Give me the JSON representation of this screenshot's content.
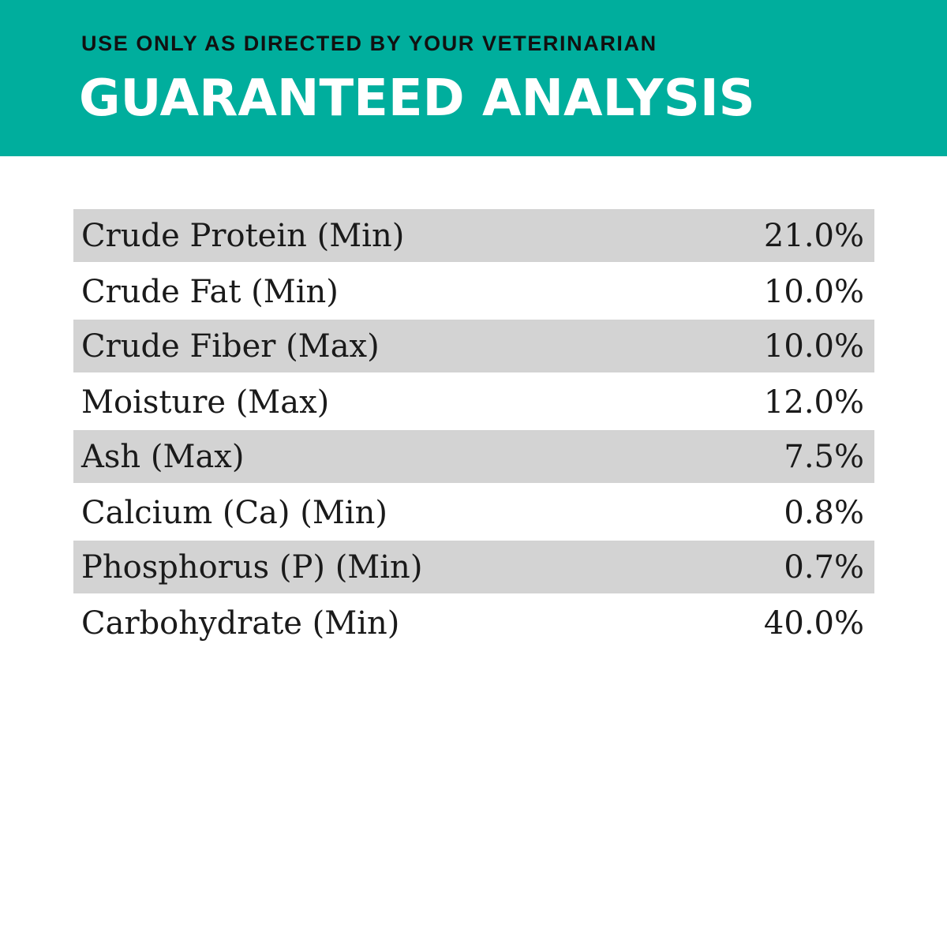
{
  "header": {
    "directive": "USE ONLY AS DIRECTED BY YOUR VETERINARIAN",
    "title": "GUARANTEED ANALYSIS",
    "background_color": "#00ae9d",
    "title_color": "#ffffff"
  },
  "analysis": {
    "rows": [
      {
        "label": "Crude Protein (Min)",
        "value": "21.0%"
      },
      {
        "label": "Crude Fat (Min)",
        "value": "10.0%"
      },
      {
        "label": "Crude Fiber (Max)",
        "value": "10.0%"
      },
      {
        "label": "Moisture (Max)",
        "value": "12.0%"
      },
      {
        "label": "Ash (Max)",
        "value": "7.5%"
      },
      {
        "label": "Calcium (Ca) (Min)",
        "value": "0.8%"
      },
      {
        "label": "Phosphorus (P) (Min)",
        "value": "0.7%"
      },
      {
        "label": "Carbohydrate (Min)",
        "value": "40.0%"
      }
    ],
    "stripe_color": "#d3d3d3"
  }
}
